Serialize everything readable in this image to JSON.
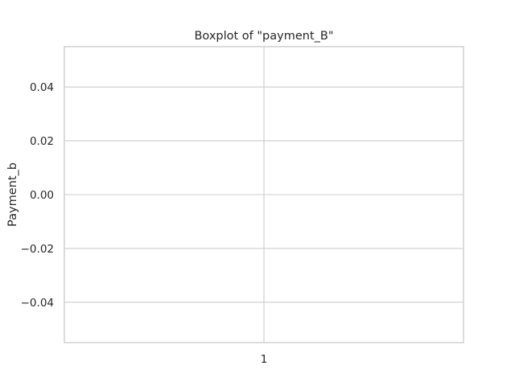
{
  "chart_data": {
    "type": "box",
    "title": "Boxplot of \"payment_B\"",
    "xlabel": "",
    "ylabel": "Payment_b",
    "categories": [
      "1"
    ],
    "series": [
      {
        "values": []
      }
    ],
    "ylim": [
      -0.055,
      0.055
    ],
    "yticks": [
      0.04,
      0.02,
      0.0,
      -0.02,
      -0.04
    ],
    "ytick_labels": [
      "0.04",
      "0.02",
      "0.00",
      "−0.02",
      "−0.04"
    ],
    "grid": true,
    "legend": "none"
  }
}
